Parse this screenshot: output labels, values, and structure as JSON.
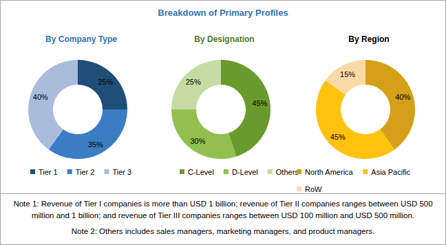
{
  "title": "Breakdown of Primary Profiles",
  "chart_data": [
    {
      "type": "pie",
      "title": "By Company Type",
      "categories": [
        "Tier 1",
        "Tier 2",
        "Tier 3"
      ],
      "values": [
        25,
        35,
        40
      ],
      "value_labels": [
        "25%",
        "35%",
        "40%"
      ],
      "colors": [
        "#1f4e79",
        "#3b7dc4",
        "#a9bcdb"
      ],
      "data_labels": true,
      "legend": "bottom"
    },
    {
      "type": "pie",
      "title": "By Designation",
      "categories": [
        "C-Level",
        "D-Level",
        "Others*"
      ],
      "values": [
        45,
        30,
        25
      ],
      "value_labels": [
        "45%",
        "30%",
        "25%"
      ],
      "colors": [
        "#6b9a2c",
        "#92c050",
        "#c5dba3"
      ],
      "data_labels": true,
      "legend": "bottom"
    },
    {
      "type": "pie",
      "title": "By Region",
      "categories": [
        "North America",
        "Asia Pacific",
        "RoW"
      ],
      "values": [
        40,
        45,
        15
      ],
      "value_labels": [
        "40%",
        "45%",
        "15%"
      ],
      "colors": [
        "#d4a017",
        "#ffc20e",
        "#fbd9a6"
      ],
      "data_labels": true,
      "legend": "bottom"
    }
  ],
  "notes": [
    "Note 1: Revenue of Tier I companies is more than USD 1 billion; revenue of Tier II companies ranges between USD 500 million and 1 billion; and revenue of Tier III companies ranges between USD 100 million and USD 500 million.",
    "Note 2: Others includes sales managers, marketing managers, and product managers."
  ]
}
